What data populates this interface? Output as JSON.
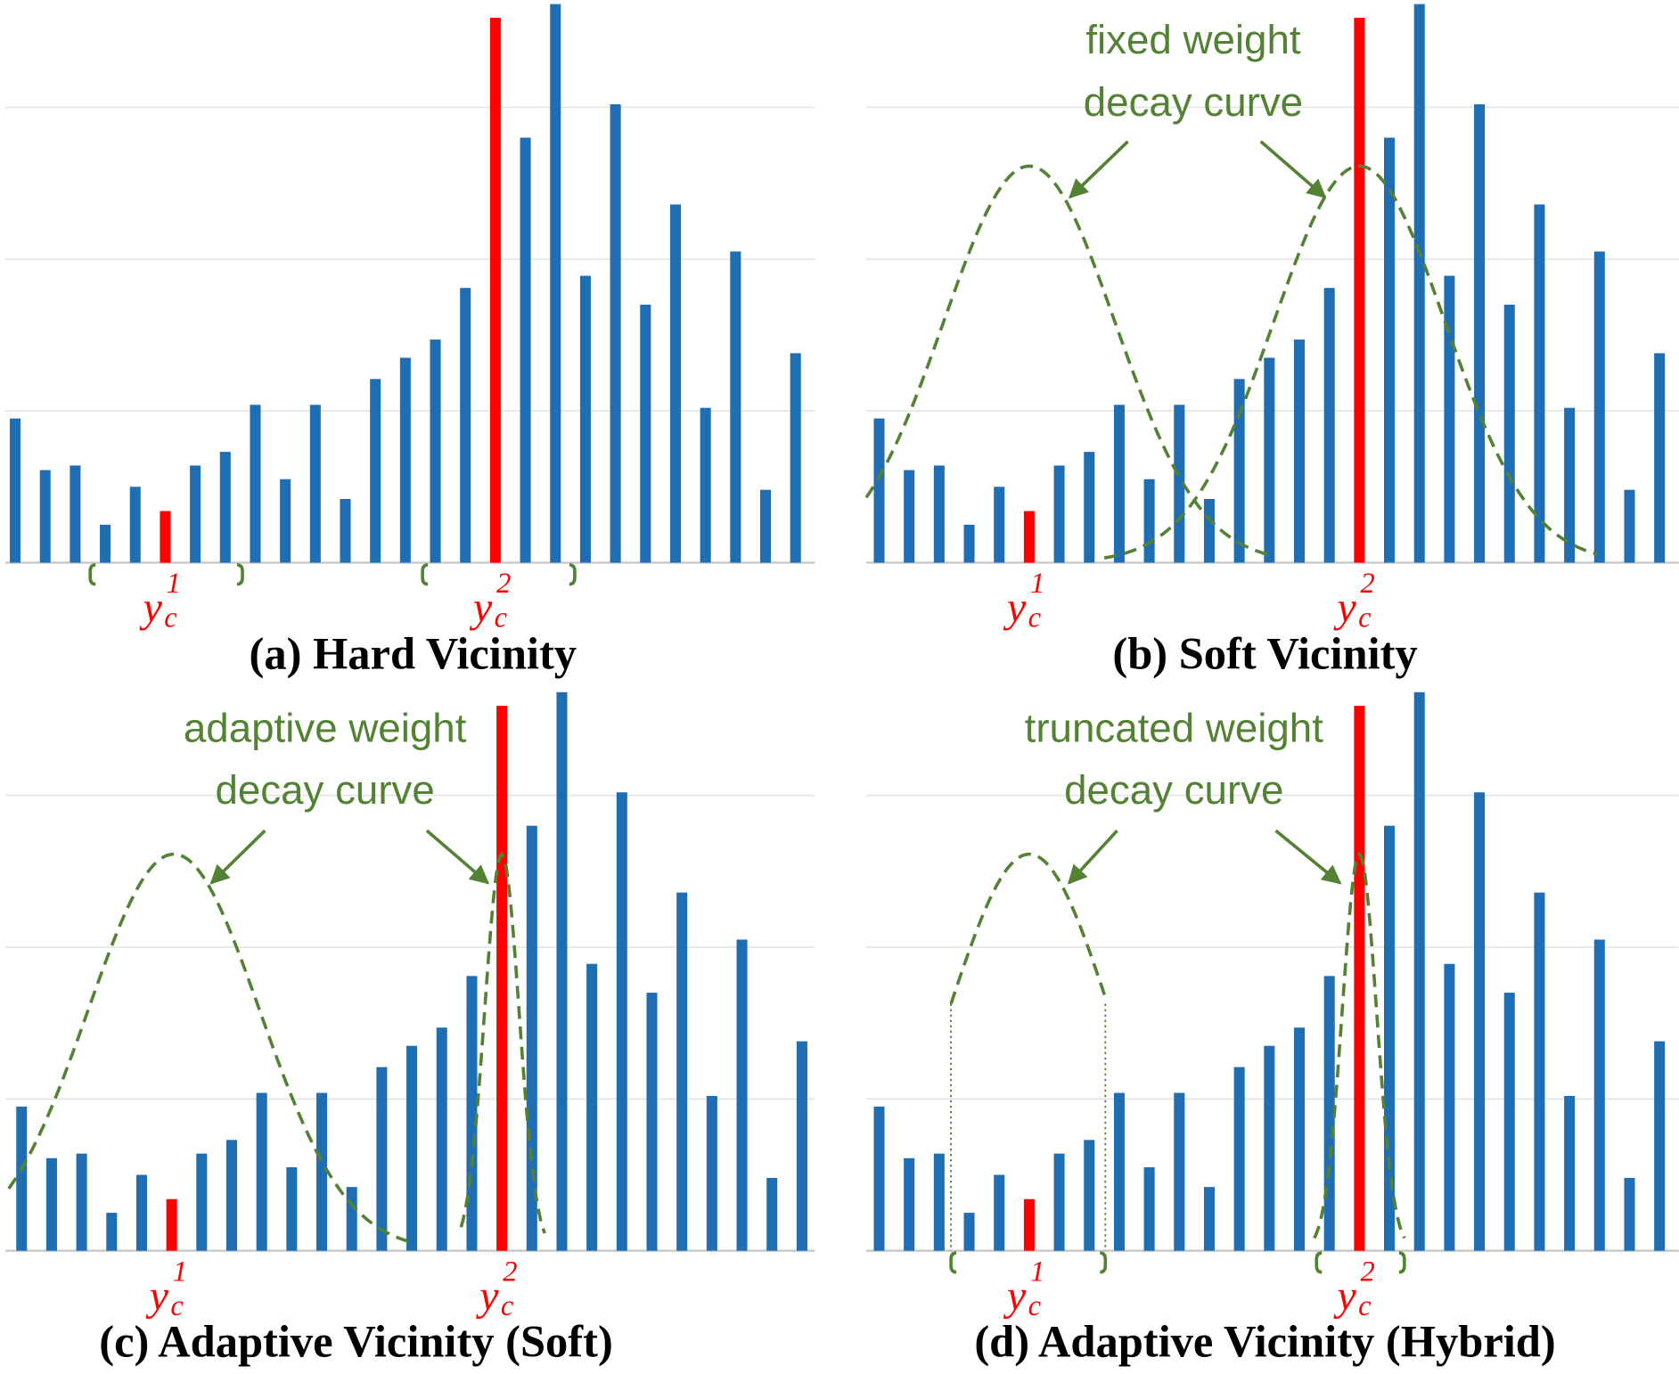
{
  "chart_data": [
    {
      "type": "bar",
      "title": "(a) Hard Vicinity",
      "values": [
        0.95,
        0.61,
        0.64,
        0.25,
        0.5,
        0.34,
        0.64,
        0.73,
        1.04,
        0.55,
        1.04,
        0.42,
        1.21,
        1.35,
        1.47,
        1.81,
        3.59,
        2.8,
        3.68,
        1.89,
        3.02,
        1.7,
        2.36,
        1.02,
        2.05,
        0.48,
        1.38
      ],
      "colors": [
        "#1f6db2",
        "#1f6db2",
        "#1f6db2",
        "#1f6db2",
        "#1f6db2",
        "#ff0000",
        "#1f6db2",
        "#1f6db2",
        "#1f6db2",
        "#1f6db2",
        "#1f6db2",
        "#1f6db2",
        "#1f6db2",
        "#1f6db2",
        "#1f6db2",
        "#1f6db2",
        "#ff0000",
        "#1f6db2",
        "#1f6db2",
        "#1f6db2",
        "#1f6db2",
        "#1f6db2",
        "#1f6db2",
        "#1f6db2",
        "#1f6db2",
        "#1f6db2",
        "#1f6db2"
      ],
      "ylim": [
        0,
        3.7
      ],
      "yticks": [
        0,
        1,
        2,
        3
      ],
      "grid": true,
      "markers": [
        {
          "base": "y",
          "sub": "c",
          "sup": "1"
        },
        {
          "base": "y",
          "sub": "c",
          "sup": "2"
        }
      ]
    },
    {
      "type": "bar",
      "title": "(b) Soft Vicinity",
      "values": [
        0.95,
        0.61,
        0.64,
        0.25,
        0.5,
        0.34,
        0.64,
        0.73,
        1.04,
        0.55,
        1.04,
        0.42,
        1.21,
        1.35,
        1.47,
        1.81,
        3.59,
        2.8,
        3.68,
        1.89,
        3.02,
        1.7,
        2.36,
        1.02,
        2.05,
        0.48,
        1.38
      ],
      "colors": [
        "#1f6db2",
        "#1f6db2",
        "#1f6db2",
        "#1f6db2",
        "#1f6db2",
        "#ff0000",
        "#1f6db2",
        "#1f6db2",
        "#1f6db2",
        "#1f6db2",
        "#1f6db2",
        "#1f6db2",
        "#1f6db2",
        "#1f6db2",
        "#1f6db2",
        "#1f6db2",
        "#ff0000",
        "#1f6db2",
        "#1f6db2",
        "#1f6db2",
        "#1f6db2",
        "#1f6db2",
        "#1f6db2",
        "#1f6db2",
        "#1f6db2",
        "#1f6db2",
        "#1f6db2"
      ],
      "ylim": [
        0,
        3.7
      ],
      "yticks": [
        0,
        1,
        2,
        3
      ],
      "grid": true,
      "annotations": [
        "fixed weight",
        "decay curve"
      ],
      "markers": [
        {
          "base": "y",
          "sub": "c",
          "sup": "1"
        },
        {
          "base": "y",
          "sub": "c",
          "sup": "2"
        }
      ]
    },
    {
      "type": "bar",
      "title": "(c) Adaptive Vicinity (Soft)",
      "values": [
        0.95,
        0.61,
        0.64,
        0.25,
        0.5,
        0.34,
        0.64,
        0.73,
        1.04,
        0.55,
        1.04,
        0.42,
        1.21,
        1.35,
        1.47,
        1.81,
        3.59,
        2.8,
        3.68,
        1.89,
        3.02,
        1.7,
        2.36,
        1.02,
        2.05,
        0.48,
        1.38
      ],
      "colors": [
        "#1f6db2",
        "#1f6db2",
        "#1f6db2",
        "#1f6db2",
        "#1f6db2",
        "#ff0000",
        "#1f6db2",
        "#1f6db2",
        "#1f6db2",
        "#1f6db2",
        "#1f6db2",
        "#1f6db2",
        "#1f6db2",
        "#1f6db2",
        "#1f6db2",
        "#1f6db2",
        "#ff0000",
        "#1f6db2",
        "#1f6db2",
        "#1f6db2",
        "#1f6db2",
        "#1f6db2",
        "#1f6db2",
        "#1f6db2",
        "#1f6db2",
        "#1f6db2",
        "#1f6db2"
      ],
      "ylim": [
        0,
        3.7
      ],
      "yticks": [
        0,
        1,
        2,
        3
      ],
      "grid": true,
      "annotations": [
        "adaptive weight",
        "decay curve"
      ],
      "markers": [
        {
          "base": "y",
          "sub": "c",
          "sup": "1"
        },
        {
          "base": "y",
          "sub": "c",
          "sup": "2"
        }
      ]
    },
    {
      "type": "bar",
      "title": "(d) Adaptive Vicinity (Hybrid)",
      "values": [
        0.95,
        0.61,
        0.64,
        0.25,
        0.5,
        0.34,
        0.64,
        0.73,
        1.04,
        0.55,
        1.04,
        0.42,
        1.21,
        1.35,
        1.47,
        1.81,
        3.59,
        2.8,
        3.68,
        1.89,
        3.02,
        1.7,
        2.36,
        1.02,
        2.05,
        0.48,
        1.38
      ],
      "colors": [
        "#1f6db2",
        "#1f6db2",
        "#1f6db2",
        "#1f6db2",
        "#1f6db2",
        "#ff0000",
        "#1f6db2",
        "#1f6db2",
        "#1f6db2",
        "#1f6db2",
        "#1f6db2",
        "#1f6db2",
        "#1f6db2",
        "#1f6db2",
        "#1f6db2",
        "#1f6db2",
        "#ff0000",
        "#1f6db2",
        "#1f6db2",
        "#1f6db2",
        "#1f6db2",
        "#1f6db2",
        "#1f6db2",
        "#1f6db2",
        "#1f6db2",
        "#1f6db2",
        "#1f6db2"
      ],
      "ylim": [
        0,
        3.7
      ],
      "yticks": [
        0,
        1,
        2,
        3
      ],
      "grid": true,
      "annotations": [
        "truncated weight",
        "decay curve"
      ],
      "markers": [
        {
          "base": "y",
          "sub": "c",
          "sup": "1"
        },
        {
          "base": "y",
          "sub": "c",
          "sup": "2"
        }
      ]
    }
  ]
}
